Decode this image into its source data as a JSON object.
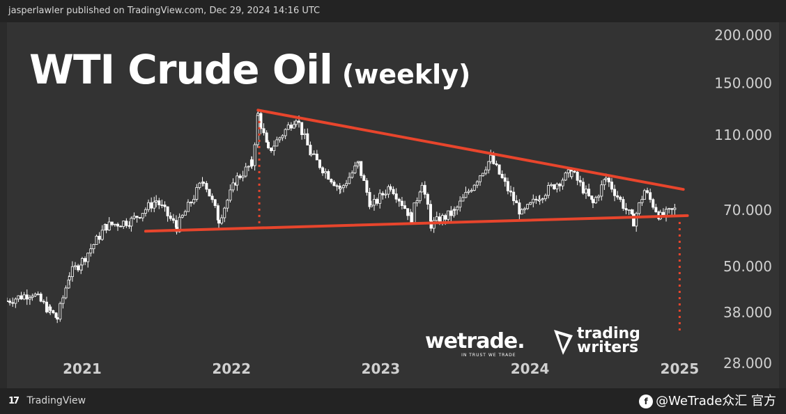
{
  "header": {
    "published": "jasperlawler published on TradingView.com, Dec 29, 2024 14:16 UTC"
  },
  "footer": {
    "brand": "TradingView",
    "watermark": "@WeTrade众汇 官方"
  },
  "logos": {
    "wetrade_name": "wetrade.",
    "wetrade_tagline": "IN TRUST WE TRADE",
    "tw_line1": "trading",
    "tw_line2": "writers"
  },
  "colors": {
    "background": "#333333",
    "bar_color": "#ffffff",
    "trendline": "#e8452c",
    "text": "#ffffff",
    "axis_text": "#d0d0d0"
  },
  "chart_data": {
    "type": "candlestick",
    "title": "WTI Crude Oil",
    "subtitle": "(weekly)",
    "y_scale": "log",
    "ylim": [
      24,
      215
    ],
    "y_ticks": [
      {
        "value": 200,
        "label": "200.000"
      },
      {
        "value": 150,
        "label": "150.000"
      },
      {
        "value": 110,
        "label": "110.000"
      },
      {
        "value": 70,
        "label": "70.000"
      },
      {
        "value": 50,
        "label": "50.000"
      },
      {
        "value": 38,
        "label": "38.000"
      },
      {
        "value": 28,
        "label": "28.000"
      }
    ],
    "xlim": [
      "2020-07-01",
      "2025-03-01"
    ],
    "x_ticks": [
      {
        "date": "2021-01-01",
        "label": "2021"
      },
      {
        "date": "2022-01-01",
        "label": "2022"
      },
      {
        "date": "2023-01-01",
        "label": "2023"
      },
      {
        "date": "2024-01-01",
        "label": "2024"
      },
      {
        "date": "2025-01-01",
        "label": "2025"
      }
    ],
    "series": [
      {
        "values": [
          {
            "date": "2020-07-01",
            "close": 40.5
          },
          {
            "date": "2020-09-01",
            "close": 42.5
          },
          {
            "date": "2020-10-15",
            "close": 38.0
          },
          {
            "date": "2020-11-01",
            "close": 36.5
          },
          {
            "date": "2020-12-01",
            "close": 47.5
          },
          {
            "date": "2021-01-01",
            "close": 51.5
          },
          {
            "date": "2021-03-01",
            "close": 63.5
          },
          {
            "date": "2021-05-01",
            "close": 65.5
          },
          {
            "date": "2021-07-01",
            "close": 74.0
          },
          {
            "date": "2021-08-20",
            "close": 63.0
          },
          {
            "date": "2021-10-25",
            "close": 84.0
          },
          {
            "date": "2021-12-01",
            "close": 66.0
          },
          {
            "date": "2022-01-15",
            "close": 84.5
          },
          {
            "date": "2022-02-20",
            "close": 92.0
          },
          {
            "date": "2022-03-07",
            "close": 123.7
          },
          {
            "date": "2022-04-01",
            "close": 99.0
          },
          {
            "date": "2022-06-08",
            "close": 122.0
          },
          {
            "date": "2022-07-15",
            "close": 97.0
          },
          {
            "date": "2022-09-25",
            "close": 79.0
          },
          {
            "date": "2022-11-07",
            "close": 92.0
          },
          {
            "date": "2022-12-09",
            "close": 71.0
          },
          {
            "date": "2023-01-25",
            "close": 81.0
          },
          {
            "date": "2023-03-17",
            "close": 66.7
          },
          {
            "date": "2023-04-12",
            "close": 83.0
          },
          {
            "date": "2023-05-04",
            "close": 64.0
          },
          {
            "date": "2023-06-30",
            "close": 69.0
          },
          {
            "date": "2023-09-27",
            "close": 95.0
          },
          {
            "date": "2023-12-12",
            "close": 68.0
          },
          {
            "date": "2024-01-25",
            "close": 76.0
          },
          {
            "date": "2024-04-12",
            "close": 87.7
          },
          {
            "date": "2024-06-03",
            "close": 72.5
          },
          {
            "date": "2024-07-05",
            "close": 84.5
          },
          {
            "date": "2024-09-10",
            "close": 65.3
          },
          {
            "date": "2024-10-07",
            "close": 78.5
          },
          {
            "date": "2024-11-15",
            "close": 67.0
          },
          {
            "date": "2024-12-27",
            "close": 70.5
          }
        ]
      }
    ],
    "annotations": [
      {
        "type": "trendline",
        "name": "upper",
        "start": {
          "date": "2022-03-07",
          "value": 127
        },
        "end": {
          "date": "2025-01-10",
          "value": 79
        }
      },
      {
        "type": "trendline",
        "name": "lower",
        "start": {
          "date": "2021-06-05",
          "value": 61.5
        },
        "end": {
          "date": "2025-01-20",
          "value": 67.5
        }
      },
      {
        "type": "dotted-vertical",
        "name": "pattern-height",
        "date": "2022-03-10",
        "from": 119,
        "to": 63
      },
      {
        "type": "dotted-vertical",
        "name": "projected-target",
        "date": "2025-01-01",
        "from": 65,
        "to": 33.5
      }
    ]
  }
}
